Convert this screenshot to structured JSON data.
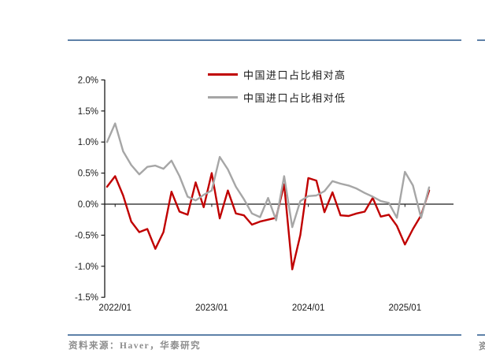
{
  "figure": {
    "accent_rule_color": "#5E81A8",
    "source_note": "资料来源：Haver，华泰研究",
    "edge_fragment_text": "资"
  },
  "chart_data": {
    "type": "line",
    "title": "",
    "xlabel": "",
    "ylabel": "",
    "grid": false,
    "legend_position": "top-center",
    "ylim": [
      -1.5,
      2.0
    ],
    "y_ticks": [
      "2.0%",
      "1.5%",
      "1.0%",
      "0.5%",
      "0.0%",
      "-0.5%",
      "-1.0%",
      "-1.5%"
    ],
    "y_tick_values": [
      2.0,
      1.5,
      1.0,
      0.5,
      0.0,
      -0.5,
      -1.0,
      -1.5
    ],
    "x": [
      "2021/12",
      "2022/01",
      "2022/02",
      "2022/03",
      "2022/04",
      "2022/05",
      "2022/06",
      "2022/07",
      "2022/08",
      "2022/09",
      "2022/10",
      "2022/11",
      "2022/12",
      "2023/01",
      "2023/02",
      "2023/03",
      "2023/04",
      "2023/05",
      "2023/06",
      "2023/07",
      "2023/08",
      "2023/09",
      "2023/10",
      "2023/11",
      "2023/12",
      "2024/01",
      "2024/02",
      "2024/03",
      "2024/04",
      "2024/05",
      "2024/06",
      "2024/07",
      "2024/08",
      "2024/09",
      "2024/10",
      "2024/11",
      "2024/12",
      "2025/01",
      "2025/02",
      "2025/03",
      "2025/04"
    ],
    "x_tick_labels": [
      "2022/01",
      "2023/01",
      "2024/01",
      "2025/01"
    ],
    "x_tick_indices": [
      1,
      13,
      25,
      37
    ],
    "series": [
      {
        "name": "中国进口占比相对高",
        "color": "#C00000",
        "values": [
          0.28,
          0.45,
          0.14,
          -0.28,
          -0.45,
          -0.4,
          -0.72,
          -0.45,
          0.2,
          -0.12,
          -0.17,
          0.35,
          -0.05,
          0.5,
          -0.23,
          0.22,
          -0.15,
          -0.18,
          -0.33,
          -0.28,
          -0.25,
          -0.22,
          0.32,
          -1.05,
          -0.5,
          0.42,
          0.38,
          -0.13,
          0.19,
          -0.18,
          -0.19,
          -0.15,
          -0.12,
          0.1,
          -0.2,
          -0.17,
          -0.35,
          -0.65,
          -0.4,
          -0.18,
          0.22
        ]
      },
      {
        "name": "中国进口占比相对低",
        "color": "#A6A6A6",
        "values": [
          1.0,
          1.3,
          0.85,
          0.63,
          0.48,
          0.6,
          0.62,
          0.57,
          0.7,
          0.45,
          0.12,
          0.06,
          0.15,
          0.22,
          0.76,
          0.56,
          0.28,
          0.08,
          -0.15,
          -0.21,
          0.1,
          -0.26,
          0.45,
          -0.37,
          0.05,
          0.13,
          0.14,
          0.21,
          0.37,
          0.33,
          0.3,
          0.25,
          0.18,
          0.12,
          0.05,
          0.02,
          -0.22,
          0.52,
          0.3,
          -0.22,
          0.27
        ]
      }
    ]
  }
}
